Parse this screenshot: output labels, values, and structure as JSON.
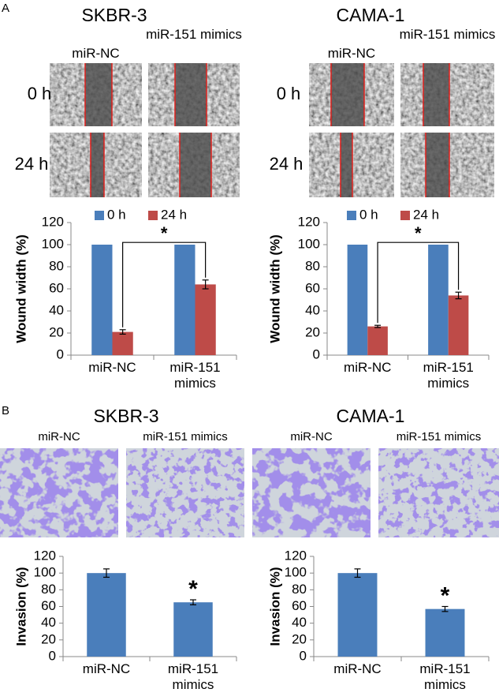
{
  "panel_a": {
    "label": "A",
    "groups": [
      {
        "title": "SKBR-3",
        "columns": [
          "miR-NC",
          "miR-151 mimics"
        ],
        "rows": [
          "0 h",
          "24 h"
        ]
      },
      {
        "title": "CAMA-1",
        "columns": [
          "miR-NC",
          "miR-151 mimics"
        ],
        "rows": [
          "0 h",
          "24 h"
        ]
      }
    ]
  },
  "panel_b": {
    "label": "B",
    "groups": [
      {
        "title": "SKBR-3",
        "columns": [
          "miR-NC",
          "miR-151 mimics"
        ]
      },
      {
        "title": "CAMA-1",
        "columns": [
          "miR-NC",
          "miR-151 mimics"
        ]
      }
    ]
  },
  "chart_data": [
    {
      "type": "bar",
      "y_label": "Wound width (%)",
      "categories": [
        "miR-NC",
        "miR-151 mimics"
      ],
      "series": [
        {
          "name": "0 h",
          "color": "#4a7ebb",
          "values": [
            100,
            100
          ]
        },
        {
          "name": "24 h",
          "color": "#be4b48",
          "values": [
            21,
            64
          ],
          "errors": [
            2,
            4
          ]
        }
      ],
      "ylim": [
        0,
        120
      ],
      "yticks": [
        0,
        20,
        40,
        60,
        80,
        100,
        120
      ],
      "legend": "top",
      "significance": "*"
    },
    {
      "type": "bar",
      "y_label": "Wound width (%)",
      "categories": [
        "miR-NC",
        "miR-151 mimics"
      ],
      "series": [
        {
          "name": "0 h",
          "color": "#4a7ebb",
          "values": [
            100,
            100
          ]
        },
        {
          "name": "24 h",
          "color": "#be4b48",
          "values": [
            26,
            54
          ],
          "errors": [
            1,
            3
          ]
        }
      ],
      "ylim": [
        0,
        120
      ],
      "yticks": [
        0,
        20,
        40,
        60,
        80,
        100,
        120
      ],
      "legend": "top",
      "significance": "*"
    },
    {
      "type": "bar",
      "y_label": "Invasion (%)",
      "categories": [
        "miR-NC",
        "miR-151 mimics"
      ],
      "series": [
        {
          "color": "#4a7ebb",
          "values": [
            100,
            65
          ],
          "errors": [
            5,
            3
          ]
        }
      ],
      "ylim": [
        0,
        120
      ],
      "yticks": [
        0,
        20,
        40,
        60,
        80,
        100,
        120
      ],
      "significance": "*"
    },
    {
      "type": "bar",
      "y_label": "Invasion (%)",
      "categories": [
        "miR-NC",
        "miR-151 mimics"
      ],
      "series": [
        {
          "color": "#4a7ebb",
          "values": [
            100,
            57
          ],
          "errors": [
            5,
            3
          ]
        }
      ],
      "ylim": [
        0,
        120
      ],
      "yticks": [
        0,
        20,
        40,
        60,
        80,
        100,
        120
      ],
      "significance": "*"
    }
  ]
}
